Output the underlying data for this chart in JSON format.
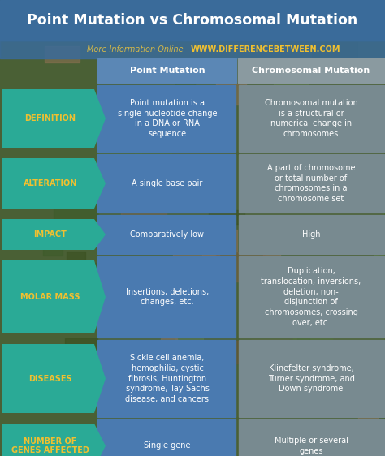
{
  "title": "Point Mutation vs Chromosomal Mutation",
  "subtitle_plain": "More Information Online",
  "subtitle_url": "WWW.DIFFERENCEBETWEEN.COM",
  "col1_header": "Point Mutation",
  "col2_header": "Chromosomal Mutation",
  "rows": [
    {
      "label": "DEFINITION",
      "col1": "Point mutation is a\nsingle nucleotide change\nin a DNA or RNA\nsequence",
      "col2": "Chromosomal mutation\nis a structural or\nnumerical change in\nchromosomes"
    },
    {
      "label": "ALTERATION",
      "col1": "A single base pair",
      "col2": "A part of chromosome\nor total number of\nchromosomes in a\nchromosome set"
    },
    {
      "label": "IMPACT",
      "col1": "Comparatively low",
      "col2": "High"
    },
    {
      "label": "MOLAR MASS",
      "col1": "Insertions, deletions,\nchanges, etc.",
      "col2": "Duplication,\ntranslocation, inversions,\ndeletion, non-\ndisjunction of\nchromosomes, crossing\nover, etc."
    },
    {
      "label": "DISEASES",
      "col1": "Sickle cell anemia,\nhemophilia, cystic\nfibrosis, Huntington\nsyndrome, Tay-Sachs\ndisease, and cancers",
      "col2": "Klinefelter syndrome,\nTurner syndrome, and\nDown syndrome"
    },
    {
      "label": "NUMBER OF\nGENES AFFECTED",
      "col1": "Single gene",
      "col2": "Multiple or several\ngenes"
    }
  ],
  "title_bg": "#3a6b9a",
  "title_color": "#ffffff",
  "subtitle_bg": "#3a6b9a",
  "subtitle_plain_color": "#d4b84a",
  "subtitle_url_color": "#f0c030",
  "header_col1_bg": "#5b87b5",
  "header_col2_bg": "#8a9aa0",
  "header_text_color": "#ffffff",
  "label_bg": "#2aaa96",
  "label_text_color": "#f0c030",
  "cell_col1_bg": "#4a7ab0",
  "cell_col2_bg": "#788a90",
  "cell_text_color": "#ffffff",
  "bg_colors": [
    "#4a6840",
    "#3a5830",
    "#5a7850",
    "#6a6040",
    "#4a5030"
  ],
  "gap_color": "#556655"
}
